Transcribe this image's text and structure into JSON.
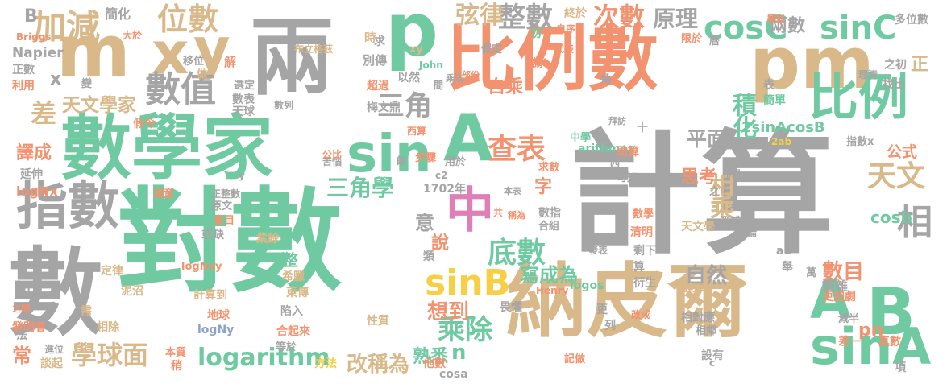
{
  "colors": {
    "background": "#ffffff",
    "gray": "#a5a5a5",
    "tan": "#d9b88a",
    "green": "#6fcaa2",
    "orange": "#f2926f",
    "blue": "#8ea1c9",
    "pink": "#e07fb7",
    "lime": "#aed65a",
    "yellow": "#f6cf45"
  },
  "words": [
    {
      "text": "計算"
    },
    {
      "text": "對數"
    },
    {
      "text": "數學家"
    },
    {
      "text": "比例數"
    },
    {
      "text": "納皮爾"
    },
    {
      "text": "兩"
    },
    {
      "text": "pm"
    },
    {
      "text": "數"
    },
    {
      "text": "p"
    },
    {
      "text": "指數"
    },
    {
      "text": "m"
    },
    {
      "text": "x"
    },
    {
      "text": "y"
    },
    {
      "text": "sin"
    },
    {
      "text": "A"
    },
    {
      "text": "中"
    },
    {
      "text": "B"
    },
    {
      "text": "A"
    },
    {
      "text": "sinA"
    },
    {
      "text": "比例"
    },
    {
      "text": "sinB"
    },
    {
      "text": "數值"
    },
    {
      "text": "相"
    },
    {
      "text": "加減"
    },
    {
      "text": "位數"
    },
    {
      "text": "cosC"
    },
    {
      "text": "sinC"
    },
    {
      "text": "整數"
    },
    {
      "text": "查表"
    },
    {
      "text": "學球面"
    },
    {
      "text": "logarithm"
    },
    {
      "text": "乘除"
    },
    {
      "text": "底數"
    },
    {
      "text": "三角"
    },
    {
      "text": "相乘"
    },
    {
      "text": "天文"
    },
    {
      "text": "積化"
    },
    {
      "text": "次數"
    },
    {
      "text": "弦律"
    },
    {
      "text": "原理"
    },
    {
      "text": "兩數"
    },
    {
      "text": "正"
    },
    {
      "text": "差"
    },
    {
      "text": "天文學家"
    },
    {
      "text": "三角學"
    },
    {
      "text": "平面"
    },
    {
      "text": "自然"
    },
    {
      "text": "數目"
    },
    {
      "text": "改稱為"
    },
    {
      "text": "cosb"
    },
    {
      "text": "譯成"
    },
    {
      "text": "2sinAcosB"
    },
    {
      "text": "寫成為"
    },
    {
      "text": "想到"
    },
    {
      "text": "熟悉"
    },
    {
      "text": "n"
    },
    {
      "text": "pn"
    },
    {
      "text": "公式"
    },
    {
      "text": "思考"
    },
    {
      "text": "自乘"
    },
    {
      "text": "字"
    },
    {
      "text": "意"
    },
    {
      "text": "說"
    },
    {
      "text": "常"
    },
    {
      "text": "x"
    },
    {
      "text": "B"
    },
    {
      "text": "簡化"
    },
    {
      "text": "終於"
    },
    {
      "text": "類似"
    },
    {
      "text": "多位數"
    },
    {
      "text": "Briggs"
    },
    {
      "text": "大於"
    },
    {
      "text": "布立格茲"
    },
    {
      "text": "xy"
    },
    {
      "text": "求"
    },
    {
      "text": "勿"
    },
    {
      "text": "限於"
    },
    {
      "text": "曆"
    },
    {
      "text": "假定"
    },
    {
      "text": "代表"
    },
    {
      "text": "自序"
    },
    {
      "text": "Napier"
    },
    {
      "text": "正數"
    },
    {
      "text": "利用"
    },
    {
      "text": "移位"
    },
    {
      "text": "做"
    },
    {
      "text": "解"
    },
    {
      "text": "時"
    },
    {
      "text": "別傳"
    },
    {
      "text": "John"
    },
    {
      "text": "以然"
    },
    {
      "text": "謂"
    },
    {
      "text": "乘法"
    },
    {
      "text": "部份"
    },
    {
      "text": "超過"
    },
    {
      "text": "間"
    },
    {
      "text": "選定"
    },
    {
      "text": "數表"
    },
    {
      "text": "天球"
    },
    {
      "text": "變"
    },
    {
      "text": "數列"
    },
    {
      "text": "延伸"
    },
    {
      "text": "假令"
    },
    {
      "text": "梅文鼎"
    },
    {
      "text": "西算"
    },
    {
      "text": "拜訪"
    },
    {
      "text": "中學"
    },
    {
      "text": "arithmos"
    },
    {
      "text": "助算"
    },
    {
      "text": "用於"
    },
    {
      "text": "步驟"
    },
    {
      "text": "餘"
    },
    {
      "text": "苦惱"
    },
    {
      "text": "公比"
    },
    {
      "text": "c2"
    },
    {
      "text": "求數"
    },
    {
      "text": "1702年"
    },
    {
      "text": "本表"
    },
    {
      "text": "四"
    },
    {
      "text": "可知"
    },
    {
      "text": "之中"
    },
    {
      "text": "常用"
    },
    {
      "text": "logNx"
    },
    {
      "text": "滿意"
    },
    {
      "text": "正整數"
    },
    {
      "text": "原文"
    },
    {
      "text": "書目"
    },
    {
      "text": "或缺"
    },
    {
      "text": "共"
    },
    {
      "text": "稱為"
    },
    {
      "text": "數指"
    },
    {
      "text": "合組"
    },
    {
      "text": "數學"
    },
    {
      "text": "清明"
    },
    {
      "text": "天文學"
    },
    {
      "text": "指數律"
    },
    {
      "text": "形式"
    },
    {
      "text": "討論"
    },
    {
      "text": "發表"
    },
    {
      "text": "剩下"
    },
    {
      "text": "算"
    },
    {
      "text": "衍生"
    },
    {
      "text": "相對應"
    },
    {
      "text": "a2"
    },
    {
      "text": "表"
    },
    {
      "text": "角"
    },
    {
      "text": "簡單"
    },
    {
      "text": "之初"
    },
    {
      "text": "找出"
    },
    {
      "text": "理清"
    },
    {
      "text": "舉"
    },
    {
      "text": "萬"
    },
    {
      "text": "繁雜"
    },
    {
      "text": "更加劇"
    },
    {
      "text": "知"
    },
    {
      "text": "發明者"
    },
    {
      "text": "定律"
    },
    {
      "text": "logNxy"
    },
    {
      "text": "整"
    },
    {
      "text": "希臘"
    },
    {
      "text": "東傳"
    },
    {
      "text": "泥沼"
    },
    {
      "text": "計算到"
    },
    {
      "text": "陷入"
    },
    {
      "text": "需"
    },
    {
      "text": "相除"
    },
    {
      "text": "地球"
    },
    {
      "text": "logNy"
    },
    {
      "text": "業餘"
    },
    {
      "text": "合起來"
    },
    {
      "text": "性質"
    },
    {
      "text": "等於"
    },
    {
      "text": "畏懼"
    },
    {
      "text": "更"
    },
    {
      "text": "列"
    },
    {
      "text": "改成"
    },
    {
      "text": "記做"
    },
    {
      "text": "減半"
    },
    {
      "text": "相鄰"
    },
    {
      "text": "差一"
    },
    {
      "text": "真數"
    },
    {
      "text": "項"
    },
    {
      "text": "設有"
    },
    {
      "text": "c"
    },
    {
      "text": "進位"
    },
    {
      "text": "談起"
    },
    {
      "text": "本質"
    },
    {
      "text": "稍"
    },
    {
      "text": "方法"
    },
    {
      "text": "他數"
    },
    {
      "text": "cosa"
    },
    {
      "text": "之間"
    },
    {
      "text": "法"
    },
    {
      "text": "Henry"
    },
    {
      "text": "logos"
    },
    {
      "text": "指數x"
    },
    {
      "text": "2ab"
    },
    {
      "text": "十"
    },
    {
      "text": "y"
    },
    {
      "text": "類"
    }
  ]
}
